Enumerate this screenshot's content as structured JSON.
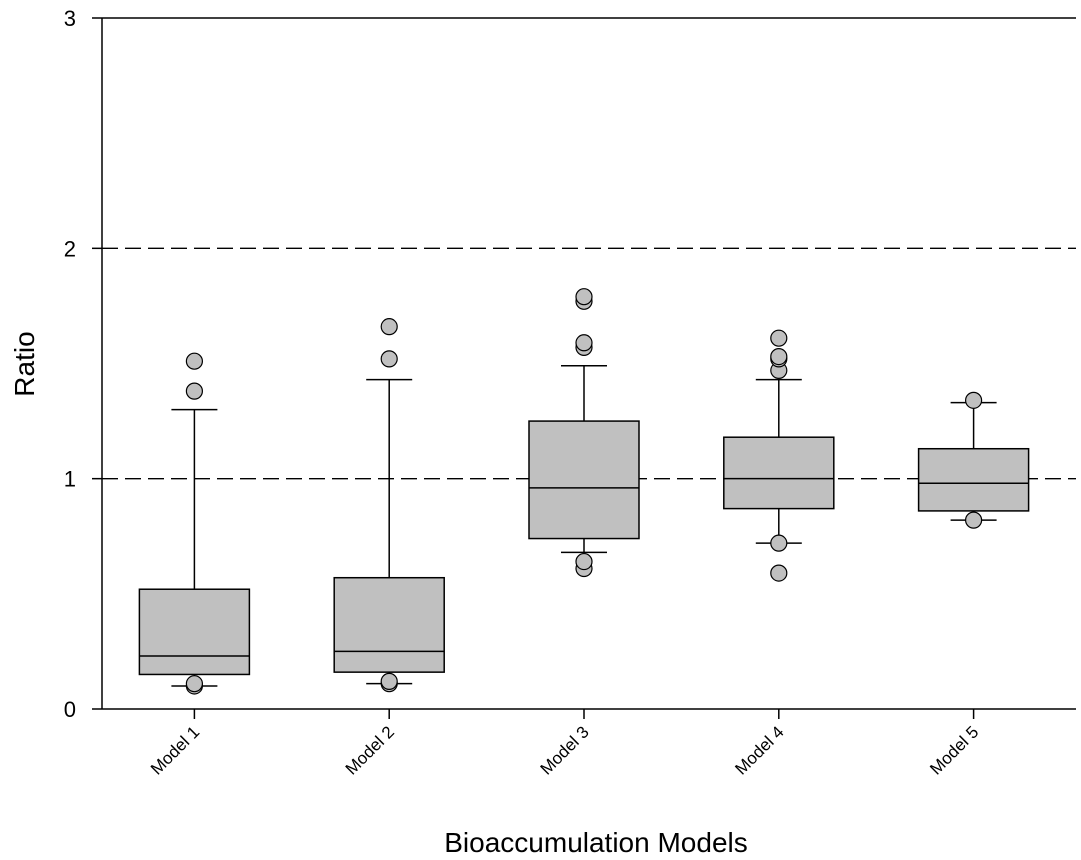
{
  "chart_data": {
    "type": "box",
    "title": "",
    "xlabel": "Bioaccumulation Models",
    "ylabel": "Ratio",
    "ylim": [
      0,
      3
    ],
    "yticks": [
      0,
      1,
      2,
      3
    ],
    "ytick_labels": [
      "0",
      "1",
      "2",
      "3"
    ],
    "reference_lines": [
      1,
      2
    ],
    "reference_line_style": "dashed",
    "grid": false,
    "legend": false,
    "box_color": "#c0c0c0",
    "outlier_color": "#c0c0c0",
    "categories": [
      "Model 1",
      "Model 2",
      "Model 3",
      "Model 4",
      "Model 5"
    ],
    "boxes": [
      {
        "name": "Model 1",
        "whisker_low": 0.1,
        "q1": 0.15,
        "median": 0.23,
        "q3": 0.52,
        "whisker_high": 1.3,
        "outliers": [
          0.1,
          0.11,
          1.38,
          1.51
        ]
      },
      {
        "name": "Model 2",
        "whisker_low": 0.11,
        "q1": 0.16,
        "median": 0.25,
        "q3": 0.57,
        "whisker_high": 1.43,
        "outliers": [
          0.11,
          0.12,
          1.52,
          1.66
        ]
      },
      {
        "name": "Model 3",
        "whisker_low": 0.68,
        "q1": 0.74,
        "median": 0.96,
        "q3": 1.25,
        "whisker_high": 1.49,
        "outliers": [
          0.61,
          0.64,
          1.57,
          1.59,
          1.77,
          1.79
        ]
      },
      {
        "name": "Model 4",
        "whisker_low": 0.72,
        "q1": 0.87,
        "median": 1.0,
        "q3": 1.18,
        "whisker_high": 1.43,
        "outliers": [
          0.59,
          0.72,
          1.47,
          1.52,
          1.53,
          1.61
        ]
      },
      {
        "name": "Model 5",
        "whisker_low": 0.82,
        "q1": 0.86,
        "median": 0.98,
        "q3": 1.13,
        "whisker_high": 1.33,
        "outliers": [
          0.82,
          1.34
        ]
      }
    ]
  }
}
